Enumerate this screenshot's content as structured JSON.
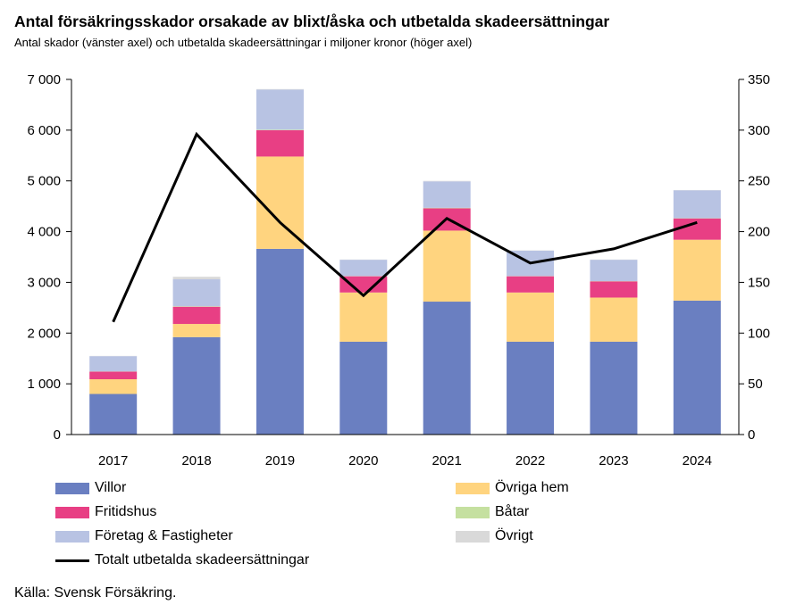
{
  "chart_data": {
    "type": "bar",
    "title": "Antal försäkringsskador orsakade av blixt/åska och utbetalda skadeersättningar",
    "subtitle": "Antal skador (vänster axel) och utbetalda skadeersättningar i miljoner kronor (höger axel)",
    "categories": [
      "2017",
      "2018",
      "2019",
      "2020",
      "2021",
      "2022",
      "2023",
      "2024"
    ],
    "ylim_left": [
      0,
      7000
    ],
    "yticks_left": [
      "0",
      "1 000",
      "2 000",
      "3 000",
      "4 000",
      "5 000",
      "6 000",
      "7 000"
    ],
    "ylim_right": [
      0,
      350
    ],
    "yticks_right": [
      "0",
      "50",
      "100",
      "150",
      "200",
      "250",
      "300",
      "350"
    ],
    "series": [
      {
        "name": "Villor",
        "color": "#6a7fc1",
        "values": [
          800,
          1920,
          3660,
          1830,
          2620,
          1830,
          1830,
          2640
        ]
      },
      {
        "name": "Övriga hem",
        "color": "#ffd47f",
        "values": [
          290,
          260,
          1820,
          970,
          1400,
          970,
          870,
          1200
        ]
      },
      {
        "name": "Fritidshus",
        "color": "#e83f84",
        "values": [
          150,
          340,
          520,
          320,
          440,
          320,
          320,
          420
        ]
      },
      {
        "name": "Båtar",
        "color": "#c5e0a0",
        "values": [
          5,
          10,
          10,
          5,
          10,
          5,
          5,
          5
        ]
      },
      {
        "name": "Företag & Fastigheter",
        "color": "#b8c3e3",
        "values": [
          300,
          530,
          790,
          320,
          520,
          500,
          420,
          550
        ]
      },
      {
        "name": "Övrigt",
        "color": "#d9d9d9",
        "values": [
          5,
          50,
          10,
          5,
          10,
          5,
          5,
          5
        ]
      }
    ],
    "line_series": {
      "name": "Totalt utbetalda skadeersättningar",
      "color": "#000000",
      "axis": "right",
      "values": [
        111,
        296,
        209,
        137,
        213,
        169,
        183,
        209
      ]
    }
  },
  "source": "Källa: Svensk Försäkring."
}
